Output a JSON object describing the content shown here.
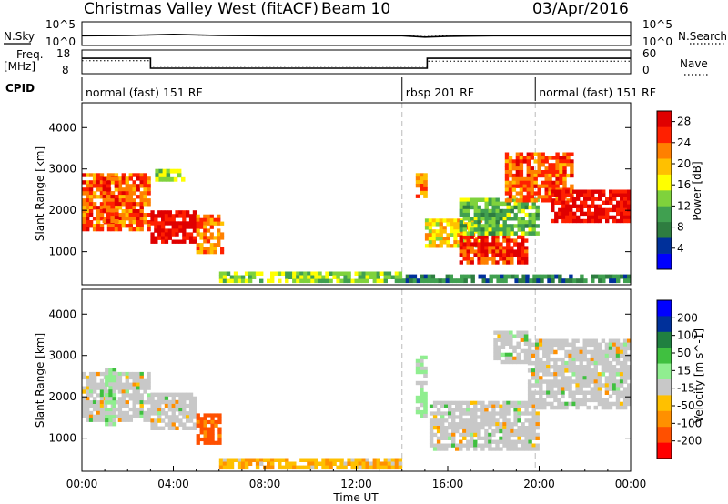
{
  "header": {
    "title": "Christmas Valley West (fitACF)",
    "beam": "Beam 10",
    "date": "03/Apr/2016"
  },
  "left_labels": {
    "nsky": "N.Sky",
    "freq_line1": "Freq.",
    "freq_line2": "[MHz]",
    "cpid": "CPID"
  },
  "right_labels": {
    "nsearch": "N.Search",
    "nave": "Nave"
  },
  "colors": {
    "power_scale": [
      "#0000ff",
      "#00309a",
      "#2e7d40",
      "#40a050",
      "#7fd23c",
      "#ffff00",
      "#ffc000",
      "#ff8000",
      "#ff2000",
      "#e00000"
    ],
    "velocity_scale": [
      "#ff0000",
      "#ff5000",
      "#ff9000",
      "#ffc000",
      "#c8c8c8",
      "#90ee90",
      "#40c040",
      "#208040",
      "#00309a",
      "#0000ff"
    ],
    "ground_scatter": "#c8c8c8",
    "mode_divider": "#bbbbbb"
  },
  "chart_data": [
    {
      "type": "line",
      "panel": "noise",
      "ylabel_left": "N.Sky",
      "ylabel_right": "N.Search",
      "yticks": [
        "10^5",
        "10^0"
      ],
      "yticks_right": [
        "10^5",
        "10^0"
      ],
      "x_hours": [
        0,
        2,
        4,
        6,
        8,
        10,
        12,
        14,
        15,
        16,
        18,
        20,
        22,
        24
      ],
      "series": [
        {
          "name": "N.Sky",
          "values": [
            0.9,
            1.0,
            1.4,
            1.0,
            0.9,
            0.9,
            0.9,
            0.9,
            0.4,
            0.7,
            0.9,
            0.9,
            0.9,
            0.9
          ]
        },
        {
          "name": "N.Search",
          "values": [
            1.0,
            1.0,
            1.3,
            1.0,
            1.0,
            1.0,
            1.0,
            1.0,
            0.6,
            0.9,
            1.0,
            1.0,
            1.0,
            1.0
          ]
        }
      ]
    },
    {
      "type": "line",
      "panel": "frequency",
      "ylabel_left": "Freq. [MHz]",
      "ylabel_right": "Nave",
      "yticks": [
        "18",
        "8"
      ],
      "yticks_right": [
        "60",
        "0"
      ],
      "freq_steps": [
        {
          "from": 0.0,
          "to": 3.0,
          "value": 14.5
        },
        {
          "from": 3.0,
          "to": 15.1,
          "value": 10.3
        },
        {
          "from": 15.1,
          "to": 24.0,
          "value": 14.5
        }
      ],
      "nave_steps": [
        {
          "from": 0.0,
          "to": 3.0,
          "value": 13.5
        },
        {
          "from": 3.0,
          "to": 15.1,
          "value": 11.2
        },
        {
          "from": 15.1,
          "to": 24.0,
          "value": 13.3
        }
      ]
    },
    {
      "type": "table",
      "panel": "cpid",
      "label": "CPID",
      "segments": [
        {
          "from": 0.0,
          "to": 14.0,
          "label": "normal (fast) 151 RF"
        },
        {
          "from": 14.0,
          "to": 19.83,
          "label": "rbsp 201 RF"
        },
        {
          "from": 19.83,
          "to": 24.0,
          "label": "normal (fast) 151 RF"
        }
      ]
    },
    {
      "type": "heatmap",
      "panel": "power",
      "ylabel": "Slant Range [km]",
      "yticks": [
        1000,
        2000,
        3000,
        4000
      ],
      "ylim": [
        200,
        4600
      ],
      "xlim": [
        0,
        24
      ],
      "xticks": [
        "00:00",
        "04:00",
        "08:00",
        "12:00",
        "16:00",
        "20:00",
        "00:00"
      ],
      "colorbar_label": "Power [dB]",
      "colorbar_ticks": [
        4,
        8,
        12,
        16,
        20,
        24,
        28
      ],
      "colorbar_range": [
        0,
        30
      ],
      "mode_change_hours": [
        14.0,
        19.83
      ],
      "regions": [
        {
          "t": [
            0.0,
            3.0
          ],
          "r": [
            1500,
            2900
          ],
          "level": 24
        },
        {
          "t": [
            0.9,
            1.6
          ],
          "r": [
            1700,
            2800
          ],
          "level": 26
        },
        {
          "t": [
            3.0,
            5.0
          ],
          "r": [
            1200,
            2000
          ],
          "level": 28
        },
        {
          "t": [
            5.0,
            6.2
          ],
          "r": [
            950,
            1900
          ],
          "level": 22
        },
        {
          "t": [
            3.2,
            4.5
          ],
          "r": [
            2700,
            3000
          ],
          "level": 14
        },
        {
          "t": [
            6.0,
            14.0
          ],
          "r": [
            250,
            520
          ],
          "level": 14
        },
        {
          "t": [
            14.6,
            15.1
          ],
          "r": [
            2300,
            2900
          ],
          "level": 22
        },
        {
          "t": [
            15.0,
            17.5
          ],
          "r": [
            1100,
            1800
          ],
          "level": 18
        },
        {
          "t": [
            16.5,
            19.5
          ],
          "r": [
            700,
            1400
          ],
          "level": 26
        },
        {
          "t": [
            16.5,
            20.0
          ],
          "r": [
            1400,
            2300
          ],
          "level": 12
        },
        {
          "t": [
            18.5,
            21.5
          ],
          "r": [
            2200,
            3400
          ],
          "level": 24
        },
        {
          "t": [
            20.5,
            24.0
          ],
          "r": [
            1700,
            2500
          ],
          "level": 28
        },
        {
          "t": [
            14.0,
            24.0
          ],
          "r": [
            250,
            450
          ],
          "level": 8
        }
      ]
    },
    {
      "type": "heatmap",
      "panel": "velocity",
      "ylabel": "Slant Range [km]",
      "xlabel": "Time UT",
      "yticks": [
        1000,
        2000,
        3000,
        4000
      ],
      "ylim": [
        200,
        4600
      ],
      "xlim": [
        0,
        24
      ],
      "xticks": [
        "00:00",
        "04:00",
        "08:00",
        "12:00",
        "16:00",
        "20:00",
        "00:00"
      ],
      "colorbar_label": "Velocity [m s^-1]",
      "colorbar_ticks": [
        200,
        100,
        50,
        15,
        -15,
        -50,
        -100,
        -200
      ],
      "mode_change_hours": [
        14.0,
        19.83
      ],
      "regions": [
        {
          "t": [
            0.0,
            3.0
          ],
          "r": [
            1400,
            2600
          ],
          "v": 0
        },
        {
          "t": [
            1.0,
            1.5
          ],
          "r": [
            1300,
            2700
          ],
          "v": 30
        },
        {
          "t": [
            3.0,
            5.0
          ],
          "r": [
            1200,
            2100
          ],
          "v": 0
        },
        {
          "t": [
            5.0,
            6.1
          ],
          "r": [
            850,
            1600
          ],
          "v": -120
        },
        {
          "t": [
            6.0,
            14.0
          ],
          "r": [
            250,
            520
          ],
          "v": -40
        },
        {
          "t": [
            14.6,
            15.1
          ],
          "r": [
            1500,
            3000
          ],
          "v": 20
        },
        {
          "t": [
            15.2,
            20.0
          ],
          "r": [
            700,
            1900
          ],
          "v": 0
        },
        {
          "t": [
            19.5,
            24.0
          ],
          "r": [
            1700,
            3400
          ],
          "v": 0
        },
        {
          "t": [
            18.0,
            19.5
          ],
          "r": [
            2800,
            3600
          ],
          "v": 0
        }
      ]
    }
  ]
}
